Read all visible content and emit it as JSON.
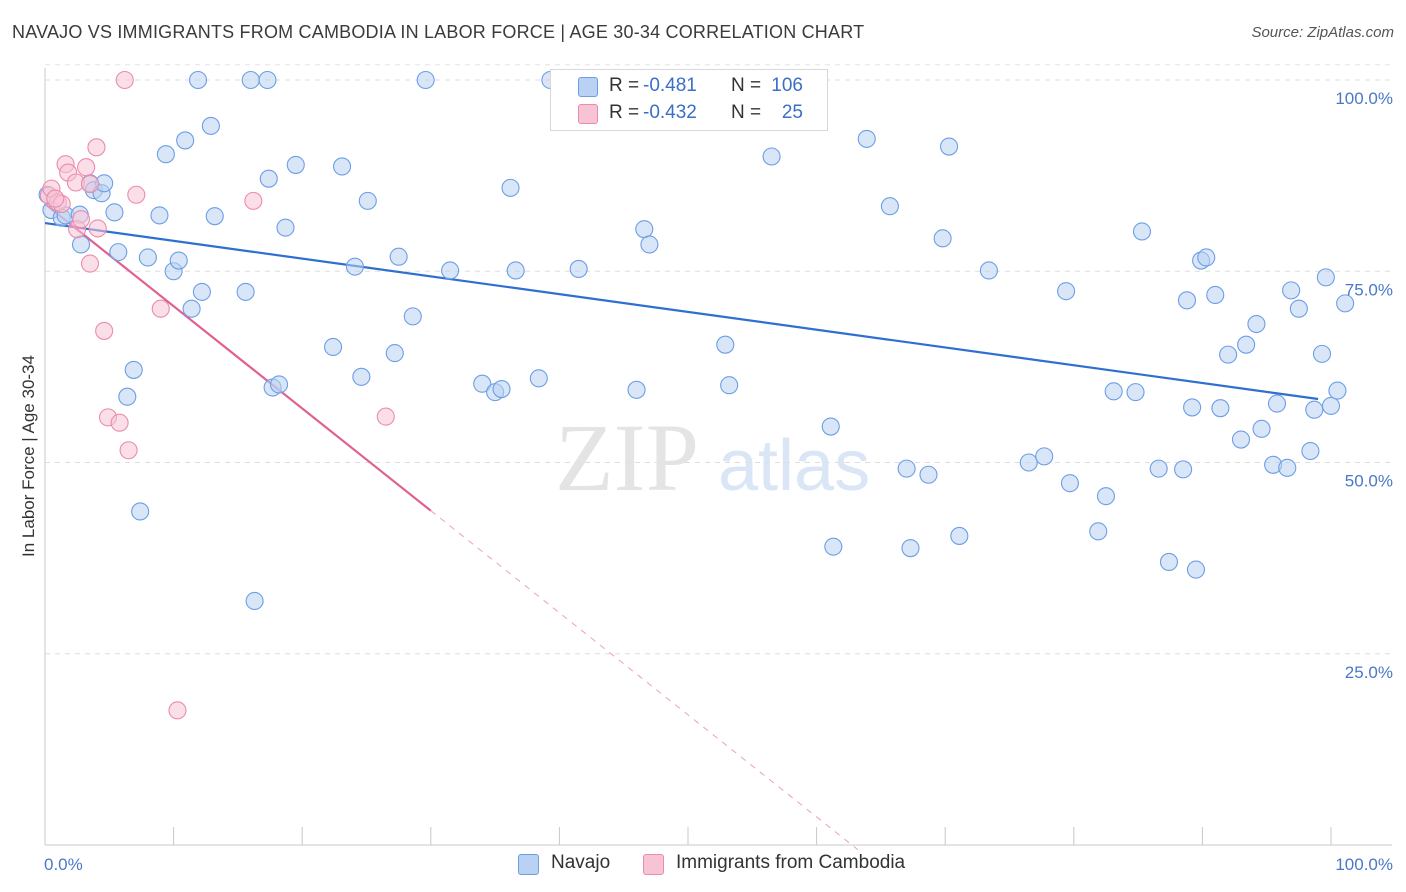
{
  "header": {
    "title": "NAVAJO VS IMMIGRANTS FROM CAMBODIA IN LABOR FORCE | AGE 30-34 CORRELATION CHART",
    "source": "Source: ZipAtlas.com"
  },
  "watermark": {
    "zip": "ZIP",
    "atlas": "atlas"
  },
  "legend_top": {
    "rows": [
      {
        "r_label": "R =",
        "r_value": "-0.481",
        "n_label": "N =",
        "n_value": "106"
      },
      {
        "r_label": "R =",
        "r_value": "-0.432",
        "n_label": "N =",
        "n_value": "25"
      }
    ]
  },
  "legend_bottom": {
    "items": [
      {
        "label": "Navajo"
      },
      {
        "label": "Immigrants from Cambodia"
      }
    ]
  },
  "chart_data": {
    "type": "scatter",
    "title": "NAVAJO VS IMMIGRANTS FROM CAMBODIA IN LABOR FORCE | AGE 30-34 CORRELATION CHART",
    "ylabel": "In Labor Force | Age 30-34",
    "xlabel": "",
    "xlim": [
      0,
      100
    ],
    "ylim": [
      0,
      102
    ],
    "x_tick_labels": [
      "0.0%",
      "100.0%"
    ],
    "y_tick_labels": [
      "100.0%",
      "75.0%",
      "50.0%",
      "25.0%"
    ],
    "y_ticks": [
      100,
      75,
      50,
      25
    ],
    "grid": "horizontal dashed",
    "legend_position": "top-center",
    "series": [
      {
        "name": "Navajo",
        "color": "#6c9ee6",
        "fill": "#b9d1f3",
        "r": -0.481,
        "n": 106,
        "trend": {
          "x": [
            0,
            99
          ],
          "y": [
            81.3,
            58.3
          ],
          "color": "#2e6fd0"
        },
        "points": [
          [
            0.2,
            85
          ],
          [
            0.5,
            83
          ],
          [
            1.3,
            82
          ],
          [
            1.6,
            82.3
          ],
          [
            2.7,
            82.4
          ],
          [
            2.8,
            78.5
          ],
          [
            3.5,
            86.5
          ],
          [
            3.8,
            85.6
          ],
          [
            4.4,
            85.2
          ],
          [
            4.6,
            86.5
          ],
          [
            5.4,
            82.7
          ],
          [
            5.7,
            77.5
          ],
          [
            6.4,
            58.6
          ],
          [
            6.9,
            62.1
          ],
          [
            7.4,
            43.6
          ],
          [
            8.0,
            76.8
          ],
          [
            8.9,
            82.3
          ],
          [
            9.4,
            90.3
          ],
          [
            10.0,
            75.0
          ],
          [
            10.4,
            76.4
          ],
          [
            10.9,
            92.1
          ],
          [
            11.4,
            70.1
          ],
          [
            12.2,
            72.3
          ],
          [
            12.9,
            94.0
          ],
          [
            13.2,
            82.2
          ],
          [
            15.6,
            72.3
          ],
          [
            16.3,
            31.9
          ],
          [
            17.4,
            87.1
          ],
          [
            17.7,
            59.8
          ],
          [
            18.2,
            60.2
          ],
          [
            18.7,
            80.7
          ],
          [
            19.5,
            88.9
          ],
          [
            22.4,
            65.1
          ],
          [
            23.1,
            88.7
          ],
          [
            24.1,
            75.6
          ],
          [
            24.6,
            61.2
          ],
          [
            25.1,
            84.2
          ],
          [
            27.2,
            64.3
          ],
          [
            27.5,
            76.9
          ],
          [
            28.6,
            69.1
          ],
          [
            31.5,
            75.1
          ],
          [
            34.0,
            60.3
          ],
          [
            35.0,
            59.2
          ],
          [
            35.5,
            59.6
          ],
          [
            36.2,
            85.9
          ],
          [
            36.6,
            75.1
          ],
          [
            38.4,
            61.0
          ],
          [
            41.5,
            75.3
          ],
          [
            46.0,
            59.5
          ],
          [
            46.6,
            80.5
          ],
          [
            47.0,
            78.5
          ],
          [
            52.9,
            65.4
          ],
          [
            53.2,
            60.1
          ],
          [
            56.5,
            90.0
          ],
          [
            61.1,
            54.7
          ],
          [
            61.3,
            39.0
          ],
          [
            63.9,
            92.3
          ],
          [
            65.7,
            83.5
          ],
          [
            67.0,
            49.2
          ],
          [
            67.3,
            38.8
          ],
          [
            68.7,
            48.4
          ],
          [
            69.8,
            79.3
          ],
          [
            70.3,
            91.3
          ],
          [
            71.1,
            40.4
          ],
          [
            73.4,
            75.1
          ],
          [
            76.5,
            50.0
          ],
          [
            77.7,
            50.8
          ],
          [
            79.4,
            72.4
          ],
          [
            79.7,
            47.3
          ],
          [
            81.9,
            41.0
          ],
          [
            82.5,
            45.6
          ],
          [
            83.1,
            59.3
          ],
          [
            84.8,
            59.2
          ],
          [
            85.3,
            80.2
          ],
          [
            86.6,
            49.2
          ],
          [
            87.4,
            37.0
          ],
          [
            88.5,
            49.1
          ],
          [
            88.8,
            71.2
          ],
          [
            89.2,
            57.2
          ],
          [
            89.5,
            36.0
          ],
          [
            89.9,
            76.4
          ],
          [
            90.3,
            76.8
          ],
          [
            91.0,
            71.9
          ],
          [
            91.4,
            57.1
          ],
          [
            92.0,
            64.1
          ],
          [
            93.0,
            53.0
          ],
          [
            93.4,
            65.4
          ],
          [
            94.2,
            68.1
          ],
          [
            94.6,
            54.4
          ],
          [
            95.5,
            49.7
          ],
          [
            95.8,
            57.7
          ],
          [
            96.6,
            49.3
          ],
          [
            96.9,
            72.5
          ],
          [
            97.5,
            70.1
          ],
          [
            98.4,
            51.5
          ],
          [
            98.7,
            56.9
          ],
          [
            99.3,
            64.2
          ],
          [
            99.6,
            74.2
          ],
          [
            100.0,
            57.4
          ],
          [
            100.5,
            59.4
          ],
          [
            101.1,
            70.8
          ],
          [
            11.9,
            100
          ],
          [
            16.0,
            100
          ],
          [
            17.3,
            100
          ],
          [
            29.6,
            100
          ],
          [
            39.3,
            100
          ]
        ]
      },
      {
        "name": "Immigrants from Cambodia",
        "color": "#ec8bab",
        "fill": "#f7c4d5",
        "r": -0.432,
        "n": 25,
        "trend": {
          "x": [
            0,
            30
          ],
          "y": [
            83.8,
            43.7
          ],
          "color": "#e06092",
          "dashed_to": {
            "x": 63.2,
            "y": -0.6
          }
        },
        "points": [
          [
            0.3,
            84.9
          ],
          [
            0.5,
            85.8
          ],
          [
            1.0,
            84.0
          ],
          [
            1.3,
            83.8
          ],
          [
            1.6,
            89.0
          ],
          [
            1.8,
            87.9
          ],
          [
            2.4,
            86.6
          ],
          [
            2.5,
            80.5
          ],
          [
            2.8,
            81.8
          ],
          [
            3.2,
            88.6
          ],
          [
            3.5,
            76.0
          ],
          [
            3.5,
            86.4
          ],
          [
            4.0,
            91.2
          ],
          [
            4.1,
            80.6
          ],
          [
            4.6,
            67.2
          ],
          [
            4.9,
            55.9
          ],
          [
            5.8,
            55.2
          ],
          [
            6.5,
            51.6
          ],
          [
            7.1,
            85.0
          ],
          [
            9.0,
            70.1
          ],
          [
            10.3,
            17.6
          ],
          [
            16.2,
            84.2
          ],
          [
            26.5,
            56.0
          ],
          [
            6.2,
            100
          ],
          [
            0.8,
            84.5
          ]
        ]
      }
    ]
  }
}
